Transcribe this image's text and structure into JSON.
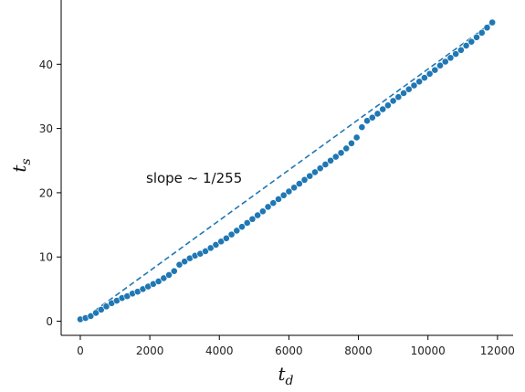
{
  "chart_data": {
    "type": "scatter",
    "xlabel": "t",
    "xlabel_sub": "d",
    "ylabel": "t",
    "ylabel_sub": "s",
    "xlim": [
      -550,
      12450
    ],
    "ylim": [
      -2.2,
      50.0
    ],
    "x_ticks": [
      0,
      2000,
      4000,
      6000,
      8000,
      10000,
      12000
    ],
    "y_ticks": [
      0,
      10,
      20,
      30,
      40
    ],
    "grid": false,
    "annotation": "slope ~ 1/255",
    "marker_color": "#1f77b4",
    "series": [
      {
        "style": "markers",
        "x": [
          0,
          150,
          300,
          450,
          600,
          750,
          900,
          1050,
          1200,
          1350,
          1500,
          1650,
          1800,
          1950,
          2100,
          2250,
          2400,
          2550,
          2700,
          2850,
          3000,
          3150,
          3300,
          3450,
          3600,
          3750,
          3900,
          4050,
          4200,
          4350,
          4500,
          4650,
          4800,
          4950,
          5100,
          5250,
          5400,
          5550,
          5700,
          5850,
          6000,
          6150,
          6300,
          6450,
          6600,
          6750,
          6900,
          7050,
          7200,
          7350,
          7500,
          7650,
          7800,
          7950,
          8100,
          8250,
          8400,
          8550,
          8700,
          8850,
          9000,
          9150,
          9300,
          9450,
          9600,
          9750,
          9900,
          10050,
          10200,
          10350,
          10500,
          10650,
          10800,
          10950,
          11100,
          11250,
          11400,
          11550,
          11700,
          11850
        ],
        "y": [
          0.3,
          0.5,
          0.8,
          1.3,
          1.8,
          2.3,
          2.8,
          3.2,
          3.6,
          3.9,
          4.3,
          4.6,
          5.0,
          5.4,
          5.8,
          6.2,
          6.7,
          7.2,
          7.8,
          8.8,
          9.3,
          9.8,
          10.2,
          10.5,
          10.9,
          11.4,
          11.9,
          12.4,
          12.9,
          13.5,
          14.1,
          14.7,
          15.3,
          15.9,
          16.5,
          17.1,
          17.8,
          18.4,
          19.0,
          19.6,
          20.2,
          20.8,
          21.4,
          22.0,
          22.6,
          23.2,
          23.8,
          24.4,
          25.0,
          25.6,
          26.2,
          26.9,
          27.7,
          28.6,
          30.2,
          31.2,
          31.7,
          32.3,
          33.0,
          33.6,
          34.3,
          34.9,
          35.5,
          36.1,
          36.7,
          37.3,
          37.9,
          38.5,
          39.1,
          39.8,
          40.4,
          41.0,
          41.6,
          42.2,
          42.9,
          43.5,
          44.2,
          44.9,
          45.7,
          46.5
        ]
      },
      {
        "style": "dashed-line",
        "x": [
          0,
          11900
        ],
        "y": [
          0,
          46.7
        ]
      }
    ]
  }
}
